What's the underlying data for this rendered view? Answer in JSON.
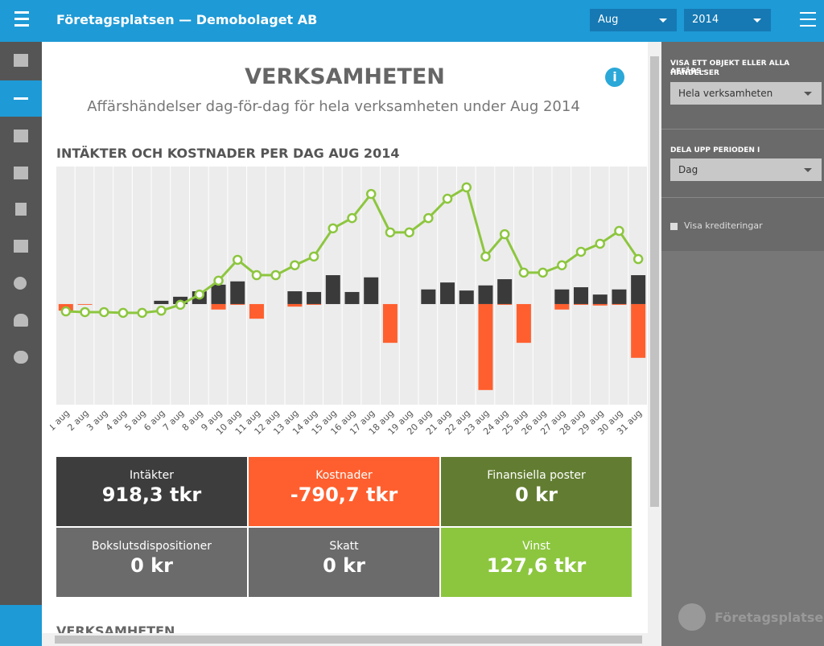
{
  "header": {
    "title": "Företagsplatsen — Demobolaget AB",
    "month": "Aug",
    "year": "2014"
  },
  "page": {
    "title": "VERKSAMHETEN",
    "subtitle": "Affärshändelser dag-för-dag för hela verksamheten under Aug 2014",
    "next_section": "VERKSAMHETEN"
  },
  "chart_data": {
    "type": "bar",
    "title": "INTÄKTER OCH KOSTNADER PER DAG AUG 2014",
    "categories": [
      "1 aug",
      "2 aug",
      "3 aug",
      "4 aug",
      "5 aug",
      "6 aug",
      "7 aug",
      "8 aug",
      "9 aug",
      "10 aug",
      "11 aug",
      "12 aug",
      "13 aug",
      "14 aug",
      "15 aug",
      "16 aug",
      "17 aug",
      "18 aug",
      "19 aug",
      "20 aug",
      "21 aug",
      "22 aug",
      "23 aug",
      "24 aug",
      "25 aug",
      "26 aug",
      "27 aug",
      "28 aug",
      "29 aug",
      "30 aug",
      "31 aug"
    ],
    "series": [
      {
        "color": "#3a3a3a",
        "values": [
          0,
          0,
          0,
          0,
          0,
          9,
          20,
          35,
          53,
          62,
          0,
          0,
          35,
          33,
          79,
          33,
          73,
          0,
          0,
          40,
          59,
          37,
          51,
          68,
          0,
          0,
          40,
          46,
          26,
          40,
          79
        ]
      },
      {
        "color": "#ff5f2e",
        "values": [
          -18,
          -2,
          0,
          0,
          0,
          0,
          0,
          0,
          -15,
          -2,
          -40,
          0,
          -7,
          -2,
          0,
          0,
          0,
          -106,
          0,
          0,
          0,
          0,
          -235,
          -2,
          -106,
          0,
          -15,
          -2,
          -4,
          -2,
          -147
        ]
      },
      {
        "type": "line",
        "color": "#8dc63f",
        "values": [
          -20,
          -22,
          -22,
          -24,
          -24,
          -18,
          -2,
          26,
          64,
          121,
          79,
          79,
          106,
          130,
          207,
          235,
          301,
          196,
          196,
          235,
          288,
          319,
          130,
          191,
          86,
          86,
          106,
          143,
          165,
          200,
          123
        ]
      }
    ],
    "ylim": [
      -275,
      376
    ]
  },
  "tiles": [
    {
      "label": "Intäkter",
      "value": "918,3 tkr"
    },
    {
      "label": "Kostnader",
      "value": "-790,7 tkr"
    },
    {
      "label": "Finansiella poster",
      "value": "0 kr"
    },
    {
      "label": "Bokslutsdispositioner",
      "value": "0 kr"
    },
    {
      "label": "Skatt",
      "value": "0 kr"
    },
    {
      "label": "Vinst",
      "value": "127,6 tkr"
    }
  ],
  "sidebar": {
    "object_label_1": "VISA ETT OBJEKT ELLER ALLA AFFÄRS-",
    "object_label_2": "HÄNDELSER",
    "object_select": "Hela verksamheten",
    "period_label": "DELA UPP PERIODEN I",
    "period_select": "Dag",
    "checkbox": "Visa krediteringar",
    "logo": "Företagsplatsen"
  }
}
